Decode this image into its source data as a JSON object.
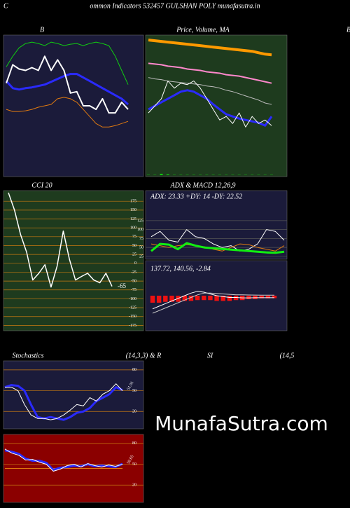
{
  "header": {
    "edge": "C",
    "title": "ommon  Indicators 532457 GULSHAN POLY munafasutra.in",
    "right_edge": "B"
  },
  "watermark": "MunafaSutra.com",
  "chart_data": [
    {
      "type": "line",
      "title": "B",
      "background": "#1b1b3a",
      "ylim": [
        0,
        100
      ],
      "series": [
        {
          "color": "#11cc11",
          "width": 1,
          "values": [
            77.5,
            85,
            91,
            94,
            95,
            94,
            92.5,
            95,
            94,
            92.5,
            93.5,
            94,
            92.5,
            94,
            95,
            94,
            92.5,
            85,
            75,
            65
          ]
        },
        {
          "color": "#2a2aff",
          "width": 3,
          "values": [
            67.5,
            62.5,
            61.5,
            62.5,
            63,
            64,
            65,
            67,
            69,
            71,
            72.5,
            72.5,
            70,
            67.5,
            65,
            62.5,
            60,
            57.5,
            55,
            51
          ]
        },
        {
          "color": "#ffffff",
          "width": 2,
          "values": [
            66,
            79,
            76,
            75,
            77,
            75,
            85,
            75,
            82.5,
            75,
            59,
            60,
            50,
            50,
            47.5,
            55,
            45,
            45,
            52.5,
            47.5
          ]
        },
        {
          "color": "#e07a10",
          "width": 1,
          "values": [
            47.5,
            46,
            46,
            46.5,
            47.5,
            49,
            50,
            51,
            55,
            56,
            55,
            52.5,
            47.5,
            42.5,
            37.5,
            35,
            35,
            36,
            37.5,
            39
          ]
        }
      ]
    },
    {
      "type": "line",
      "title": "Price,  Volume, MA",
      "background": "#1e3b1e",
      "ylim": [
        0,
        100
      ],
      "series": [
        {
          "color": "#ff9900",
          "width": 4,
          "values": [
            96.5,
            96,
            95.5,
            95,
            94.5,
            94,
            93.5,
            93,
            92.5,
            92,
            91.5,
            91,
            90.5,
            90,
            89.5,
            89,
            88.5,
            87.5,
            86.5,
            86
          ]
        },
        {
          "color": "#ff88cc",
          "width": 2,
          "values": [
            80,
            79.5,
            79,
            78,
            77.5,
            77,
            76,
            75.5,
            75,
            74,
            73.5,
            73,
            72,
            71.5,
            71,
            70,
            69,
            68,
            67,
            66
          ]
        },
        {
          "color": "#bbbbbb",
          "width": 1,
          "values": [
            70,
            69,
            68.5,
            67.5,
            67,
            66.5,
            66,
            65.5,
            65,
            64,
            63.5,
            62.5,
            61,
            60,
            58.5,
            57,
            55.5,
            54,
            52,
            51
          ]
        },
        {
          "color": "#2a2aff",
          "width": 3,
          "values": [
            47.5,
            50,
            52.5,
            55,
            57.5,
            60,
            61,
            60,
            57.5,
            55,
            51,
            47.5,
            44,
            42.5,
            41,
            40,
            39,
            38,
            36,
            42.5
          ]
        },
        {
          "color": "#ffffff",
          "width": 1,
          "values": [
            45,
            50,
            55,
            67.5,
            62.5,
            66,
            65,
            67.5,
            62.5,
            55,
            47.5,
            40,
            42.5,
            37.5,
            45,
            35,
            42.5,
            37.5,
            40,
            36
          ]
        }
      ],
      "volume_color": "#11cc11",
      "volume_lim": [
        0,
        100
      ],
      "volume": [
        1,
        1,
        5,
        3,
        1,
        1,
        1,
        1,
        1,
        1,
        1,
        1,
        1,
        1,
        1,
        1,
        1,
        1,
        1,
        1
      ]
    },
    {
      "type": "line",
      "title": "CCI 20",
      "background": "#1e3b1e",
      "grid_color": "#c87a10",
      "tick_side": "right",
      "ylim": [
        -190,
        205
      ],
      "yticks": [
        175,
        150,
        125,
        100,
        75,
        50,
        25,
        0,
        -25,
        -50,
        -75,
        -100,
        -125,
        -150,
        -175
      ],
      "series": [
        {
          "color": "#ffffff",
          "width": 1.5,
          "values": [
            199,
            150,
            81,
            31,
            -47,
            -28,
            -4,
            -67,
            -8,
            91,
            12,
            -47,
            -37,
            -28,
            -47,
            -55,
            -28,
            -65
          ]
        }
      ],
      "last_value": -65
    },
    {
      "type": "line",
      "title": "ADX  & MACD 12,26,9",
      "subtitle": "ADX: 23.33 +DY: 14 -DY: 22.52",
      "background": "#1b1b3a",
      "grid_color": "#555555",
      "tick_side": "left",
      "ylim": [
        17,
        209
      ],
      "yticks": [
        125,
        100,
        75,
        50,
        25
      ],
      "series": [
        {
          "color": "#ffffff",
          "width": 1,
          "values": [
            80,
            95,
            70,
            65,
            100,
            80,
            75,
            60,
            50,
            55,
            40,
            45,
            60,
            100,
            95,
            70
          ]
        },
        {
          "color": "#e07a10",
          "width": 1,
          "values": [
            60,
            55,
            50,
            55,
            58,
            55,
            52,
            45,
            40,
            50,
            60,
            58,
            50,
            45,
            40,
            55
          ]
        },
        {
          "color": "#11ee11",
          "width": 3,
          "values": [
            40,
            60,
            58,
            45,
            62,
            55,
            50,
            48,
            46,
            44,
            42,
            40,
            38,
            36,
            35,
            38
          ]
        }
      ]
    },
    {
      "type": "macd",
      "subtitle": "137.72, 140.56, -2.84",
      "background": "#1b1b3a",
      "ylim": [
        100,
        180
      ],
      "y2lim": [
        -40,
        40
      ],
      "histogram_color": "#ee1111",
      "histogram": [
        -8,
        -8,
        -7,
        -7,
        -7,
        -6,
        -6,
        -5,
        -5,
        -5,
        -6,
        -6,
        -6,
        -5,
        -5,
        -4,
        -4,
        -3,
        -3,
        -2.84
      ],
      "series": [
        {
          "color": "#ffffff",
          "width": 1,
          "values": [
            125,
            128,
            131,
            134,
            137,
            140,
            143,
            145,
            144,
            142,
            140,
            139,
            138,
            138,
            137.5,
            137.5,
            137.7,
            137.7,
            137.7,
            137.72
          ]
        },
        {
          "color": "#cccccc",
          "width": 1,
          "values": [
            120,
            123,
            126,
            129,
            132,
            135,
            138,
            141,
            143,
            143,
            142.5,
            142,
            141.5,
            141,
            141,
            140.8,
            140.7,
            140.6,
            140.6,
            140.56
          ]
        }
      ]
    },
    {
      "type": "line",
      "title": "Stochastics",
      "subtitle": "(14,3,3) & R",
      "background": "#1b1b3a",
      "grid_color": "#c87a10",
      "tick_side": "right",
      "ylim": [
        -5,
        93
      ],
      "yticks": [
        80,
        50,
        20
      ],
      "series": [
        {
          "color": "#2a2aff",
          "width": 3,
          "values": [
            55,
            58,
            57,
            50,
            30,
            12,
            10,
            12,
            10,
            8,
            12,
            18,
            20,
            25,
            35,
            40,
            45,
            55,
            51.01
          ]
        },
        {
          "color": "#ffffff",
          "width": 1,
          "values": [
            55,
            55,
            50,
            30,
            15,
            10,
            10,
            8,
            10,
            15,
            22,
            30,
            28,
            40,
            35,
            45,
            50,
            60,
            50
          ]
        }
      ],
      "last_value": 51.01
    },
    {
      "type": "line",
      "title": "SI",
      "subtitle": "(14,5",
      "background": "#8b0000",
      "grid_color": "#c87a10",
      "tick_side": "right",
      "ylim": [
        -5,
        93
      ],
      "yticks": [
        80,
        50,
        20
      ],
      "series": [
        {
          "color": "#e07a10",
          "width": 1,
          "values": [
            44,
            44,
            44,
            44,
            44,
            44,
            44,
            44,
            44,
            44,
            44,
            44,
            44,
            44,
            44,
            44,
            44,
            44
          ]
        },
        {
          "color": "#2a2aff",
          "width": 3,
          "values": [
            70,
            68,
            65,
            58,
            55,
            55,
            52,
            42,
            45,
            46,
            48,
            47,
            50,
            47,
            48,
            47,
            46,
            50.65
          ]
        },
        {
          "color": "#ffffff",
          "width": 1,
          "values": [
            72,
            66,
            63,
            56,
            57,
            53,
            50,
            40,
            43,
            48,
            50,
            46,
            51,
            48,
            46,
            49,
            47,
            50
          ]
        }
      ],
      "last_value": 50.65
    }
  ]
}
